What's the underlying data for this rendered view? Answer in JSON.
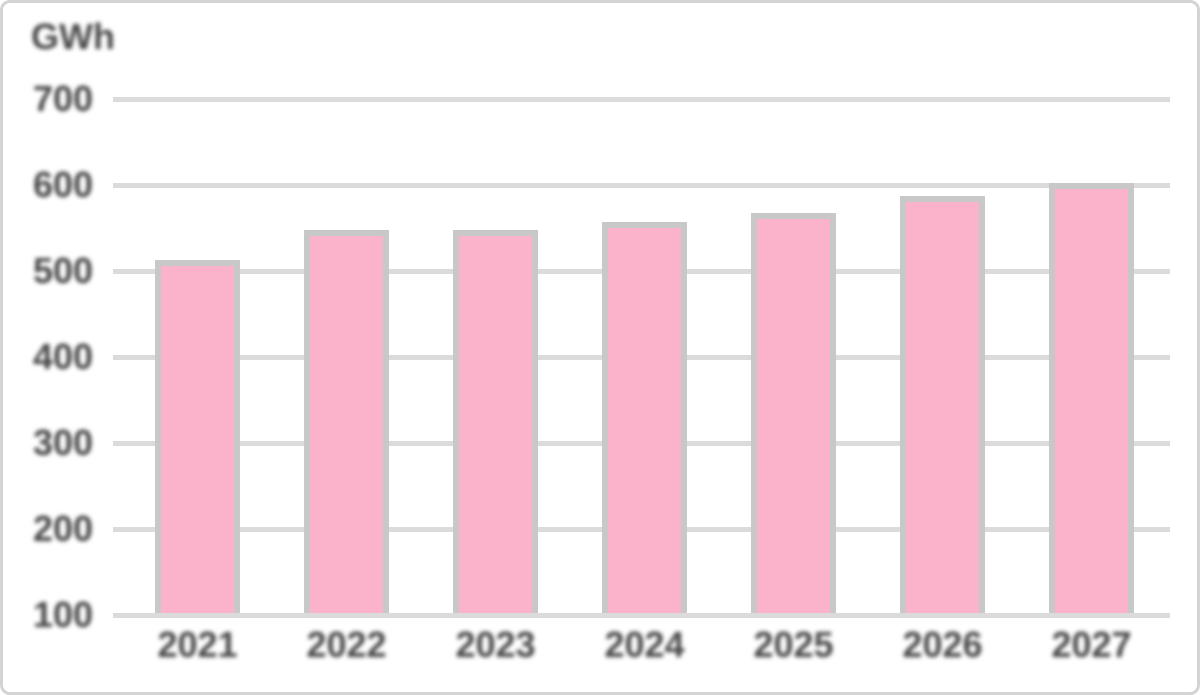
{
  "chart_data": {
    "type": "bar",
    "title": "",
    "unit_label": "GWh",
    "categories": [
      "2021",
      "2022",
      "2023",
      "2024",
      "2025",
      "2026",
      "2027"
    ],
    "values": [
      510,
      545,
      545,
      555,
      565,
      585,
      600
    ],
    "yticks": [
      700,
      600,
      500,
      400,
      300,
      200,
      100
    ],
    "ylim": [
      100,
      700
    ],
    "xlabel": "",
    "ylabel": "GWh",
    "grid": true,
    "legend_position": "none",
    "colors": {
      "bar_fill": "#fbb3cb",
      "bar_border": "#c8c8c8",
      "gridline": "#dbdbdb",
      "text": "#474747",
      "frame_border": "#d4d4d4",
      "background": "#ffffff"
    }
  }
}
